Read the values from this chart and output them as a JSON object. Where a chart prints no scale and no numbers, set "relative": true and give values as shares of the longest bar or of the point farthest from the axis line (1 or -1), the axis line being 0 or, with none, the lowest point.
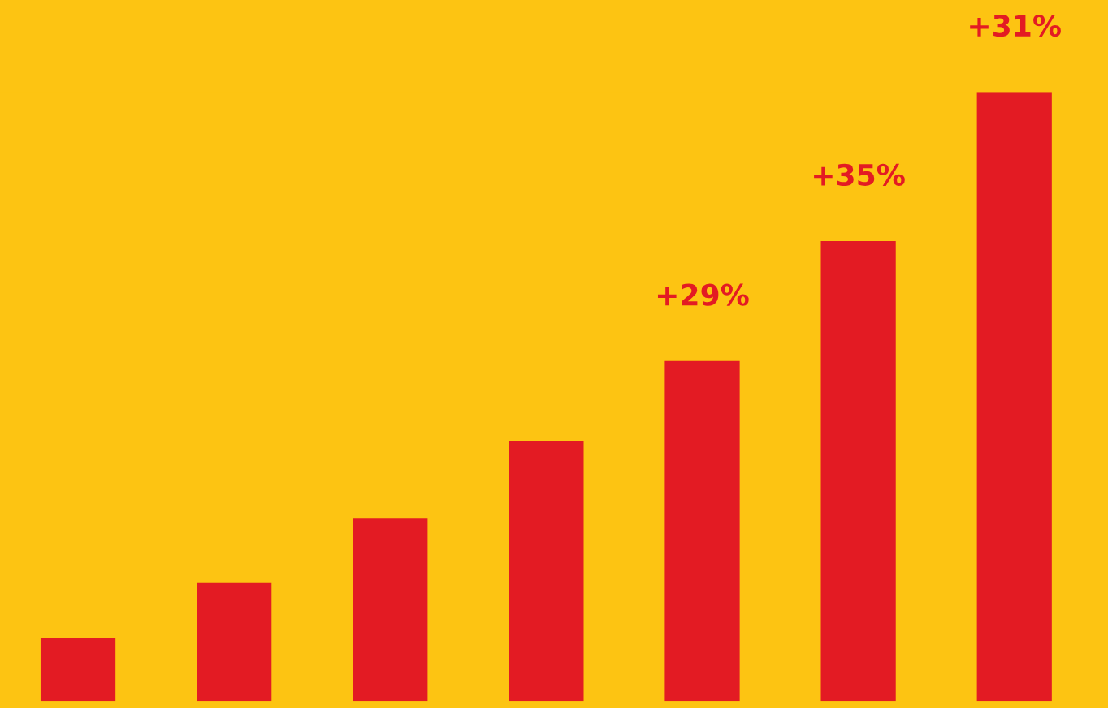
{
  "chart_data": {
    "type": "bar",
    "relative": true,
    "categories": [
      null,
      null,
      null,
      null,
      null,
      null,
      null
    ],
    "values": [
      0.103,
      0.194,
      0.3,
      0.427,
      0.558,
      0.755,
      1.0
    ],
    "color": "#e31b23",
    "annotations": [
      "+29%",
      "+35%",
      "+31%"
    ],
    "grid": false,
    "legend": false
  }
}
